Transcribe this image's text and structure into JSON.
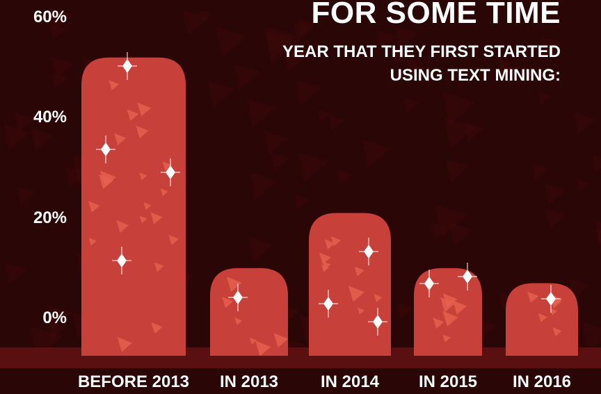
{
  "header": {
    "title": "FOR SOME TIME",
    "subtitle_line1": "YEAR THAT THEY FIRST STARTED",
    "subtitle_line2": "USING TEXT MINING:"
  },
  "colors": {
    "background": "#2a0606",
    "bar": "#c8403a",
    "bar_highlight": "#e8604f",
    "ground": "#5a1010",
    "text": "#ffffff"
  },
  "chart_data": {
    "type": "bar",
    "categories": [
      "BEFORE 2013",
      "IN 2013",
      "IN 2014",
      "IN 2015",
      "IN 2016"
    ],
    "series": [
      {
        "values": [
          52,
          10,
          21,
          10,
          7
        ]
      }
    ],
    "y_ticks": [
      "0%",
      "20%",
      "40%",
      "60%"
    ],
    "ylim": [
      -7,
      60
    ],
    "xlabel": "",
    "ylabel": "",
    "grid": false
  }
}
